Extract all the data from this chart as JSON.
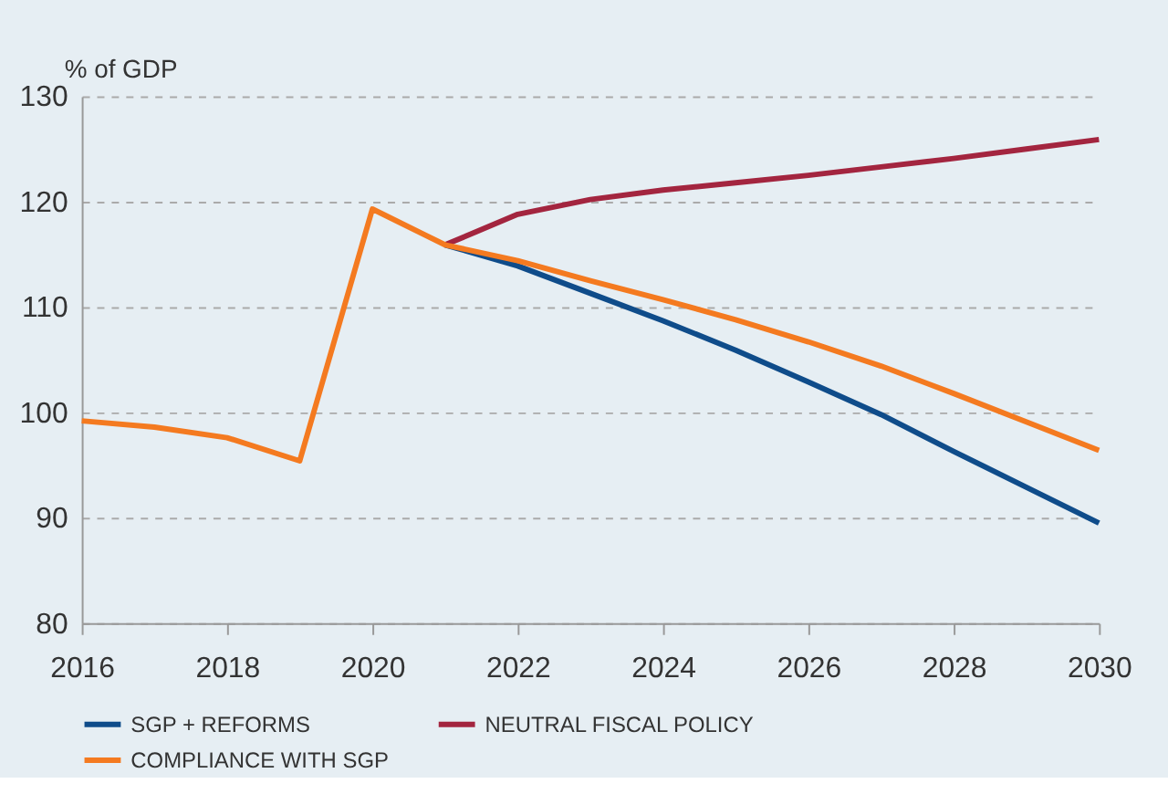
{
  "chart_data": {
    "type": "line",
    "ylabel": "% of GDP",
    "x": [
      2016,
      2017,
      2018,
      2019,
      2020,
      2021,
      2022,
      2023,
      2024,
      2025,
      2026,
      2027,
      2028,
      2029,
      2030
    ],
    "series": [
      {
        "name": "SGP + REFORMS",
        "color": "#0f4c8a",
        "values": [
          null,
          null,
          null,
          null,
          null,
          115.9,
          113.9,
          111.3,
          108.7,
          105.9,
          102.9,
          99.8,
          96.3,
          92.9,
          89.5
        ]
      },
      {
        "name": "NEUTRAL FISCAL POLICY",
        "color": "#a3253f",
        "values": [
          null,
          null,
          null,
          null,
          null,
          115.9,
          118.8,
          120.2,
          121.1,
          121.8,
          122.5,
          123.3,
          124.1,
          125.0,
          125.9
        ]
      },
      {
        "name": "COMPLIANCE WITH SGP",
        "color": "#f47a20",
        "values": [
          99.2,
          98.6,
          97.6,
          95.4,
          119.3,
          115.9,
          114.4,
          112.5,
          110.7,
          108.8,
          106.7,
          104.4,
          101.8,
          99.1,
          96.4
        ]
      }
    ],
    "xlim": [
      2016,
      2030
    ],
    "xticks": [
      2016,
      2018,
      2020,
      2022,
      2024,
      2026,
      2028,
      2030
    ],
    "ylim": [
      80,
      130
    ],
    "yticks": [
      80,
      90,
      100,
      110,
      120,
      130
    ],
    "grid": "y",
    "legend": "bottom",
    "marker": "none",
    "line_style": "solid"
  }
}
